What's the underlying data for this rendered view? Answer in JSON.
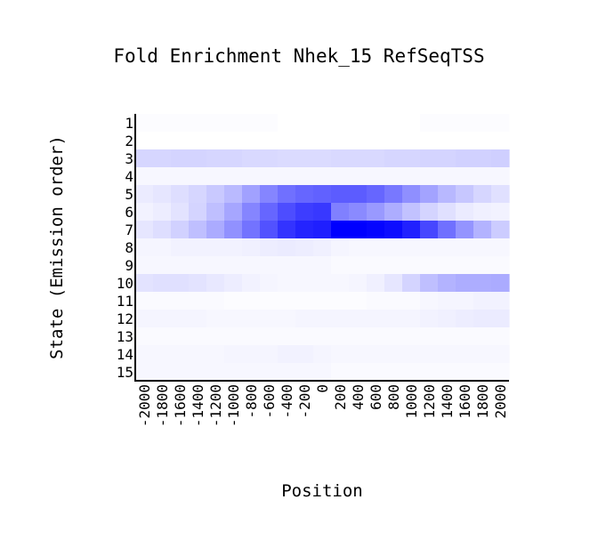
{
  "chart_data": {
    "type": "heatmap",
    "title": "Fold Enrichment Nhek_15 RefSeqTSS",
    "xlabel": "Position",
    "ylabel": "State (Emission order)",
    "x": [
      "-2000",
      "-1800",
      "-1600",
      "-1400",
      "-1200",
      "-1000",
      "-800",
      "-600",
      "-400",
      "-200",
      "0",
      "200",
      "400",
      "600",
      "800",
      "1000",
      "1200",
      "1400",
      "1600",
      "1800",
      "2000"
    ],
    "y": [
      "1",
      "2",
      "3",
      "4",
      "5",
      "6",
      "7",
      "8",
      "9",
      "10",
      "11",
      "12",
      "13",
      "14",
      "15"
    ],
    "color_scale": {
      "low": "#ffffff",
      "high": "#0000ff"
    },
    "values": [
      [
        0.01,
        0.01,
        0.01,
        0.01,
        0.01,
        0.01,
        0.01,
        0.01,
        0.0,
        0.0,
        0.0,
        0.0,
        0.0,
        0.0,
        0.0,
        0.0,
        0.01,
        0.01,
        0.01,
        0.01,
        0.01
      ],
      [
        0.0,
        0.0,
        0.0,
        0.0,
        0.0,
        0.0,
        0.0,
        0.0,
        0.0,
        0.0,
        0.0,
        0.0,
        0.0,
        0.0,
        0.0,
        0.0,
        0.0,
        0.0,
        0.0,
        0.0,
        0.0
      ],
      [
        0.16,
        0.16,
        0.17,
        0.17,
        0.16,
        0.16,
        0.15,
        0.15,
        0.14,
        0.14,
        0.14,
        0.15,
        0.15,
        0.15,
        0.16,
        0.16,
        0.17,
        0.17,
        0.18,
        0.18,
        0.19
      ],
      [
        0.03,
        0.03,
        0.03,
        0.03,
        0.03,
        0.03,
        0.03,
        0.03,
        0.03,
        0.03,
        0.03,
        0.03,
        0.03,
        0.03,
        0.03,
        0.03,
        0.03,
        0.03,
        0.03,
        0.03,
        0.03
      ],
      [
        0.08,
        0.1,
        0.13,
        0.16,
        0.21,
        0.27,
        0.37,
        0.48,
        0.56,
        0.6,
        0.62,
        0.64,
        0.64,
        0.6,
        0.53,
        0.44,
        0.36,
        0.28,
        0.22,
        0.16,
        0.12
      ],
      [
        0.05,
        0.07,
        0.11,
        0.17,
        0.25,
        0.35,
        0.48,
        0.6,
        0.7,
        0.76,
        0.78,
        0.5,
        0.46,
        0.4,
        0.32,
        0.24,
        0.17,
        0.12,
        0.08,
        0.06,
        0.05
      ],
      [
        0.1,
        0.13,
        0.18,
        0.25,
        0.33,
        0.43,
        0.55,
        0.68,
        0.8,
        0.86,
        0.88,
        1.0,
        1.0,
        0.98,
        0.95,
        0.87,
        0.72,
        0.56,
        0.42,
        0.3,
        0.2
      ],
      [
        0.04,
        0.04,
        0.05,
        0.05,
        0.05,
        0.05,
        0.06,
        0.07,
        0.08,
        0.07,
        0.06,
        0.04,
        0.03,
        0.03,
        0.03,
        0.03,
        0.03,
        0.03,
        0.03,
        0.03,
        0.03
      ],
      [
        0.03,
        0.03,
        0.03,
        0.03,
        0.03,
        0.03,
        0.03,
        0.03,
        0.03,
        0.03,
        0.03,
        0.02,
        0.02,
        0.02,
        0.02,
        0.02,
        0.02,
        0.02,
        0.02,
        0.02,
        0.02
      ],
      [
        0.11,
        0.12,
        0.12,
        0.11,
        0.09,
        0.07,
        0.05,
        0.04,
        0.03,
        0.03,
        0.03,
        0.03,
        0.04,
        0.06,
        0.1,
        0.17,
        0.25,
        0.3,
        0.32,
        0.32,
        0.33
      ],
      [
        0.02,
        0.02,
        0.02,
        0.02,
        0.02,
        0.01,
        0.01,
        0.01,
        0.01,
        0.01,
        0.01,
        0.01,
        0.01,
        0.02,
        0.02,
        0.02,
        0.03,
        0.04,
        0.04,
        0.05,
        0.05
      ],
      [
        0.04,
        0.04,
        0.04,
        0.04,
        0.03,
        0.03,
        0.03,
        0.03,
        0.03,
        0.04,
        0.04,
        0.04,
        0.04,
        0.04,
        0.04,
        0.04,
        0.05,
        0.06,
        0.07,
        0.08,
        0.08
      ],
      [
        0.02,
        0.02,
        0.02,
        0.02,
        0.02,
        0.02,
        0.02,
        0.02,
        0.02,
        0.02,
        0.02,
        0.02,
        0.02,
        0.02,
        0.02,
        0.02,
        0.02,
        0.02,
        0.02,
        0.02,
        0.02
      ],
      [
        0.03,
        0.03,
        0.03,
        0.03,
        0.03,
        0.04,
        0.04,
        0.04,
        0.05,
        0.05,
        0.04,
        0.03,
        0.03,
        0.03,
        0.03,
        0.03,
        0.03,
        0.03,
        0.03,
        0.03,
        0.03
      ],
      [
        0.03,
        0.03,
        0.03,
        0.03,
        0.03,
        0.03,
        0.03,
        0.03,
        0.03,
        0.03,
        0.03,
        0.02,
        0.02,
        0.02,
        0.02,
        0.02,
        0.02,
        0.02,
        0.02,
        0.02,
        0.02
      ]
    ],
    "grid": false,
    "legend": "none"
  }
}
